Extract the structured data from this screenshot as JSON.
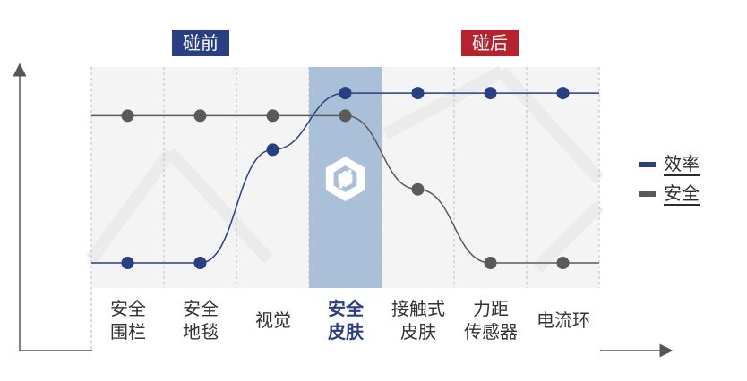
{
  "phase_tags": {
    "before": {
      "label": "碰前",
      "color": "#2a3e83"
    },
    "after": {
      "label": "碰后",
      "color": "#b8222e"
    }
  },
  "chart_data": {
    "type": "line",
    "categories": [
      "安全\n围栏",
      "安全\n地毯",
      "视觉",
      "安全\n皮肤",
      "接触式\n皮肤",
      "力距\n传感器",
      "电流环"
    ],
    "highlight_category": "安全\n皮肤",
    "y_levels": [
      "low",
      "mid",
      "high",
      "top"
    ],
    "series": [
      {
        "name": "效率",
        "color": "#2a3e83",
        "values": [
          0,
          0,
          2,
          3,
          3,
          3,
          3
        ]
      },
      {
        "name": "安全",
        "color": "#5a5a5a",
        "values": [
          2.6,
          2.6,
          2.6,
          2.6,
          1.3,
          0,
          0
        ]
      }
    ],
    "ylim": [
      0,
      3
    ]
  },
  "colors": {
    "highlight_column": "#a9c0d8",
    "grid": "#bbbbbb",
    "axis": "#555555"
  },
  "icons": {
    "highlight": "hexagon-logo-icon"
  }
}
